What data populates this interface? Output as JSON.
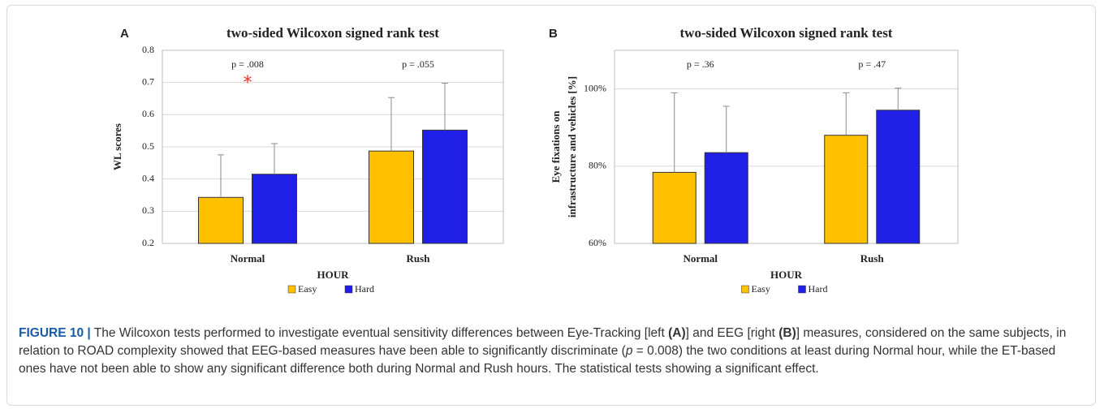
{
  "chart_data": [
    {
      "type": "bar",
      "panel": "A",
      "title": "two-sided Wilcoxon signed rank test",
      "xlabel": "HOUR",
      "ylabel": [
        "WL scores"
      ],
      "categories": [
        "Normal",
        "Rush"
      ],
      "series": [
        {
          "name": "Easy",
          "color": "#ffc000",
          "values": [
            0.343,
            0.487
          ],
          "errors": [
            0.132,
            0.166
          ]
        },
        {
          "name": "Hard",
          "color": "#1f1fe8",
          "values": [
            0.415,
            0.552
          ],
          "errors": [
            0.095,
            0.146
          ]
        }
      ],
      "annotations": [
        "p = .008",
        "p = .055"
      ],
      "significance": [
        "*",
        null
      ],
      "ylim": [
        0.2,
        0.8
      ],
      "yticks": [
        0.2,
        0.3,
        0.4,
        0.5,
        0.6,
        0.7,
        0.8
      ],
      "grid": true,
      "legend": "bottom"
    },
    {
      "type": "bar",
      "panel": "B",
      "title": "two-sided Wilcoxon signed rank test",
      "xlabel": "HOUR",
      "ylabel": [
        "Eye fixations on",
        "infrastructure and vehicles [%]"
      ],
      "categories": [
        "Normal",
        "Rush"
      ],
      "series": [
        {
          "name": "Easy",
          "color": "#ffc000",
          "values": [
            78.4,
            88
          ],
          "errors": [
            20.6,
            11
          ]
        },
        {
          "name": "Hard",
          "color": "#1f1fe8",
          "values": [
            83.5,
            94.5
          ],
          "errors": [
            12,
            5.7
          ]
        }
      ],
      "annotations": [
        "p = .36",
        "p = .47"
      ],
      "significance": [
        null,
        null
      ],
      "ylim": [
        60,
        110
      ],
      "yticks": [
        {
          "value": 60,
          "label": "60%"
        },
        {
          "value": 80,
          "label": "80%"
        },
        {
          "value": 100,
          "label": "100%"
        }
      ],
      "grid": true,
      "legend": "bottom"
    }
  ],
  "caption": {
    "label": "FIGURE 10 |",
    "segments": [
      "The Wilcoxon tests performed to investigate eventual sensitivity differences between Eye-Tracking [left ",
      "(A)",
      "] and EEG [right ",
      "(B)",
      "] measures, considered on the same subjects, in relation to ROAD complexity showed that EEG-based measures have been able to significantly discriminate (",
      "p",
      " = 0.008) the two conditions at least during Normal hour, while the ET-based ones have not been able to show any significant difference both during Normal and Rush hours. The statistical tests showing a significant effect."
    ]
  }
}
